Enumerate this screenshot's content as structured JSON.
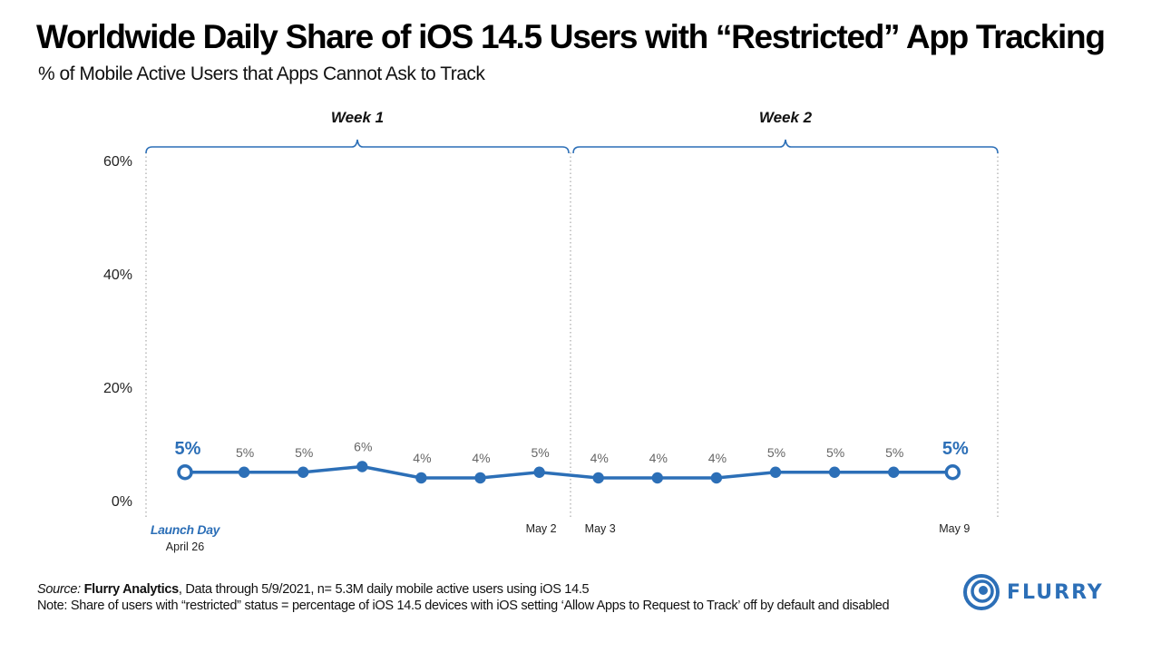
{
  "colors": {
    "accent": "#2c6fb7",
    "text": "#111111",
    "grid": "#a8a8a8"
  },
  "chart_data": {
    "type": "line",
    "title": "Worldwide Daily Share of iOS 14.5 Users with “Restricted” App Tracking",
    "subtitle": "% of Mobile Active Users that Apps Cannot Ask to Track",
    "xlabel": "",
    "ylabel": "",
    "ylim": [
      0,
      60
    ],
    "yticks": [
      "0%",
      "20%",
      "40%",
      "60%"
    ],
    "ytick_values": [
      0,
      20,
      40,
      60
    ],
    "grid": false,
    "legend": "none",
    "x": [
      "2021-04-26",
      "2021-04-27",
      "2021-04-28",
      "2021-04-29",
      "2021-04-30",
      "2021-05-01",
      "2021-05-02",
      "2021-05-03",
      "2021-05-04",
      "2021-05-05",
      "2021-05-06",
      "2021-05-07",
      "2021-05-08",
      "2021-05-09"
    ],
    "series": [
      {
        "values": [
          5,
          5,
          5,
          6,
          4,
          4,
          5,
          4,
          4,
          4,
          5,
          5,
          5,
          5
        ],
        "labels": [
          "5%",
          "5%",
          "5%",
          "6%",
          "4%",
          "4%",
          "5%",
          "4%",
          "4%",
          "4%",
          "5%",
          "5%",
          "5%",
          "5%"
        ],
        "highlighted": [
          0,
          13
        ]
      }
    ],
    "week_brackets": [
      {
        "label": "Week 1",
        "start": 0,
        "end": 6
      },
      {
        "label": "Week 2",
        "start": 7,
        "end": 13
      }
    ],
    "x_annotations": [
      {
        "index": 0,
        "label": "Launch Day",
        "sublabel": "April 26"
      },
      {
        "index": 6,
        "label": "May 2"
      },
      {
        "index": 7,
        "label": "May 3"
      },
      {
        "index": 13,
        "label": "May 9"
      }
    ]
  },
  "footer": {
    "source_prefix": "Source:",
    "source_name": "Flurry Analytics",
    "source_rest": ", Data through 5/9/2021, n= 5.3M daily mobile active users using iOS 14.5",
    "note": "Note: Share of users with “restricted” status = percentage of iOS 14.5 devices with iOS setting ‘Allow Apps to Request to Track’ off by default and disabled"
  },
  "logo": {
    "text": "FLURRY",
    "icon": "flurry-swirl-icon"
  }
}
